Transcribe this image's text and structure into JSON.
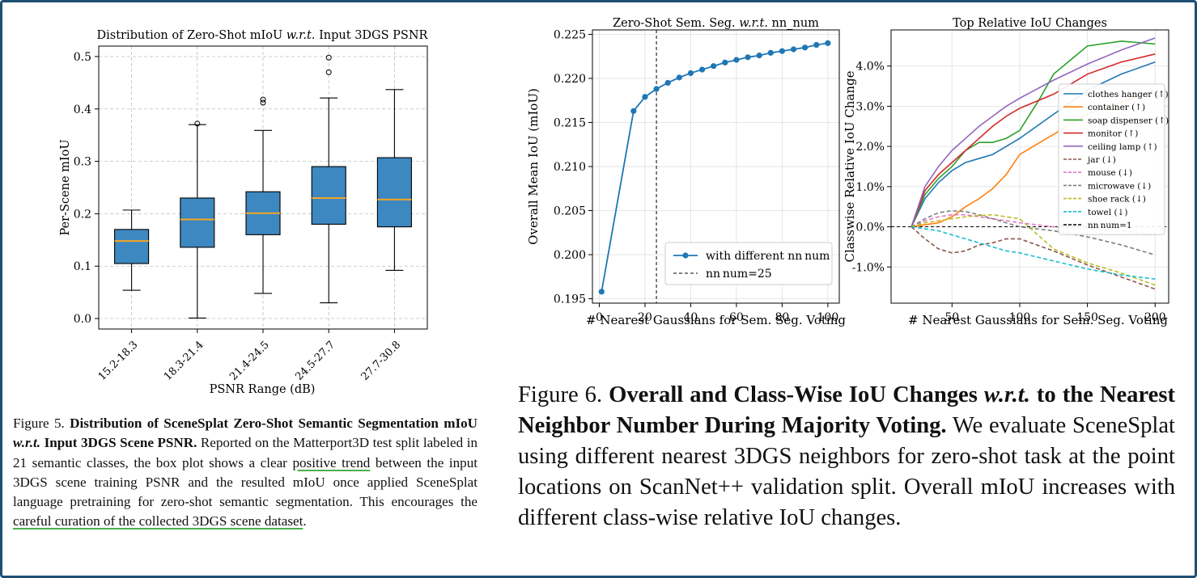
{
  "figure5": {
    "title_pre": "Distribution of Zero-Shot mIoU ",
    "title_em": "w.r.t.",
    "title_post": " Input 3DGS PSNR",
    "ylabel": "Per-Scene mIoU",
    "xlabel": "PSNR Range (dB)",
    "caption": {
      "label": "Figure 5. ",
      "bold1": "Distribution of SceneSplat Zero-Shot Semantic Segmentation mIoU ",
      "bold_em": "w.r.t.",
      "bold2": " Input 3DGS Scene PSNR.",
      "text1": " Reported on the Matterport3D test split labeled in 21 semantic classes, the box plot shows a clear ",
      "hl1": "positive trend",
      "text2": " between the input 3DGS scene training PSNR and the resulted mIoU once applied SceneSplat language pretraining for zero-shot semantic segmentation. This encourages the ",
      "hl2": "careful curation of the collected 3DGS scene dataset",
      "text3": "."
    }
  },
  "figure6": {
    "caption": {
      "label": "Figure 6. ",
      "bold1": "Overall and Class-Wise IoU Changes ",
      "bold_em": "w.r.t.",
      "bold2": " to the Nearest Neighbor Number During Majority Voting.",
      "text": " We evaluate SceneSplat using different nearest 3DGS neighbors for zero-shot task at the point locations on ScanNet++ validation split. Overall mIoU increases with different class-wise relative IoU changes."
    }
  },
  "colors": {
    "box": "#3d88c0",
    "median": "#f5a623",
    "frame": "#1d4f73"
  },
  "chart_data": [
    {
      "type": "box",
      "title": "Distribution of Zero-Shot mIoU w.r.t. Input 3DGS PSNR",
      "xlabel": "PSNR Range (dB)",
      "ylabel": "Per-Scene mIoU",
      "ylim": [
        -0.02,
        0.52
      ],
      "yticks": [
        "0.0",
        "0.1",
        "0.2",
        "0.3",
        "0.4",
        "0.5"
      ],
      "grid": true,
      "categories": [
        "15.2-18.3",
        "18.3-21.4",
        "21.4-24.5",
        "24.5-27.7",
        "27.7-30.8"
      ],
      "boxes": [
        {
          "whisker_low": 0.054,
          "q1": 0.105,
          "median": 0.148,
          "q3": 0.17,
          "whisker_high": 0.207,
          "outliers": []
        },
        {
          "whisker_low": 0.001,
          "q1": 0.136,
          "median": 0.189,
          "q3": 0.23,
          "whisker_high": 0.37,
          "outliers": [
            0.372
          ]
        },
        {
          "whisker_low": 0.048,
          "q1": 0.16,
          "median": 0.201,
          "q3": 0.242,
          "whisker_high": 0.359,
          "outliers": [
            0.412,
            0.418
          ]
        },
        {
          "whisker_low": 0.03,
          "q1": 0.18,
          "median": 0.23,
          "q3": 0.29,
          "whisker_high": 0.421,
          "outliers": [
            0.47,
            0.498
          ]
        },
        {
          "whisker_low": 0.092,
          "q1": 0.175,
          "median": 0.227,
          "q3": 0.307,
          "whisker_high": 0.437,
          "outliers": []
        }
      ]
    },
    {
      "type": "line",
      "title": "Zero-Shot Sem. Seg. w.r.t. nn_num",
      "xlabel": "# Nearest Gaussians for Sem. Seg. Voting",
      "ylabel": "Overall Mean IoU (mIoU)",
      "xlim": [
        -3,
        105
      ],
      "ylim": [
        0.1945,
        0.2255
      ],
      "xticks": [
        "0",
        "20",
        "40",
        "60",
        "80",
        "100"
      ],
      "yticks": [
        "0.195",
        "0.200",
        "0.205",
        "0.210",
        "0.215",
        "0.220",
        "0.225"
      ],
      "grid": true,
      "legend": "bottom-right",
      "series": [
        {
          "name": "with different nn_num",
          "color": "#1f77b4",
          "x": [
            1,
            15,
            20,
            25,
            30,
            35,
            40,
            45,
            50,
            55,
            60,
            65,
            70,
            75,
            80,
            85,
            90,
            95,
            100
          ],
          "y": [
            0.1958,
            0.2163,
            0.2179,
            0.2188,
            0.2195,
            0.2201,
            0.2206,
            0.221,
            0.2214,
            0.2218,
            0.2221,
            0.2224,
            0.2226,
            0.2229,
            0.2231,
            0.2233,
            0.2235,
            0.2238,
            0.224
          ]
        }
      ],
      "vline": {
        "x": 25,
        "name": "nn_num=25"
      }
    },
    {
      "type": "line",
      "title": "Top Relative IoU Changes",
      "xlabel": "# Nearest Gaussians for Sem. Seg. Voting",
      "ylabel": "Classwise Relative IoU Change",
      "xlim": [
        5,
        210
      ],
      "ylim": [
        -1.9,
        4.9
      ],
      "xticks": [
        "50",
        "100",
        "150",
        "200"
      ],
      "yticks": [
        "-1.0%",
        "0.0%",
        "1.0%",
        "2.0%",
        "3.0%",
        "4.0%"
      ],
      "grid": true,
      "legend": "right",
      "hline": {
        "y": 0,
        "name": "nn_num=1"
      },
      "series": [
        {
          "name": "clothes hanger (↑)",
          "color": "#1f77b4",
          "dash": false,
          "x": [
            20,
            30,
            40,
            50,
            60,
            70,
            80,
            90,
            100,
            125,
            150,
            175,
            200
          ],
          "y": [
            0,
            0.7,
            1.1,
            1.4,
            1.6,
            1.7,
            1.8,
            2.0,
            2.2,
            2.8,
            3.4,
            3.8,
            4.1
          ]
        },
        {
          "name": "container (↑)",
          "color": "#ff7f0e",
          "dash": false,
          "x": [
            20,
            30,
            40,
            50,
            60,
            70,
            80,
            90,
            100,
            125,
            150,
            175,
            200
          ],
          "y": [
            0,
            0.05,
            0.1,
            0.25,
            0.5,
            0.7,
            0.95,
            1.3,
            1.8,
            2.3,
            2.8,
            3.1,
            3.4
          ]
        },
        {
          "name": "soap dispenser (↑)",
          "color": "#2ca02c",
          "dash": false,
          "x": [
            20,
            30,
            40,
            50,
            60,
            70,
            80,
            90,
            100,
            115,
            125,
            150,
            175,
            200
          ],
          "y": [
            0,
            0.8,
            1.2,
            1.5,
            1.9,
            2.1,
            2.1,
            2.2,
            2.4,
            3.2,
            3.8,
            4.5,
            4.62,
            4.55
          ]
        },
        {
          "name": "monitor (↑)",
          "color": "#d62728",
          "dash": false,
          "x": [
            20,
            30,
            40,
            50,
            60,
            70,
            80,
            90,
            100,
            125,
            150,
            175,
            200
          ],
          "y": [
            0,
            0.9,
            1.3,
            1.6,
            1.9,
            2.2,
            2.5,
            2.75,
            2.95,
            3.3,
            3.8,
            4.1,
            4.3
          ]
        },
        {
          "name": "ceiling lamp (↑)",
          "color": "#9467bd",
          "dash": false,
          "x": [
            20,
            30,
            40,
            50,
            60,
            70,
            80,
            90,
            100,
            125,
            150,
            175,
            200
          ],
          "y": [
            0,
            1.0,
            1.5,
            1.9,
            2.2,
            2.5,
            2.75,
            3.0,
            3.2,
            3.65,
            4.05,
            4.4,
            4.7
          ]
        },
        {
          "name": "jar (↓)",
          "color": "#8c564b",
          "dash": true,
          "x": [
            20,
            30,
            40,
            50,
            60,
            70,
            80,
            90,
            100,
            125,
            150,
            175,
            200
          ],
          "y": [
            0,
            -0.3,
            -0.55,
            -0.65,
            -0.6,
            -0.45,
            -0.4,
            -0.3,
            -0.3,
            -0.6,
            -0.95,
            -1.25,
            -1.55
          ]
        },
        {
          "name": "mouse (↓)",
          "color": "#e377c2",
          "dash": true,
          "x": [
            20,
            30,
            40,
            50,
            60,
            70,
            80,
            90,
            100,
            125,
            150,
            175,
            200
          ],
          "y": [
            0,
            0.15,
            0.25,
            0.3,
            0.3,
            0.25,
            0.2,
            0.15,
            0.1,
            0.0,
            -0.05,
            -0.1,
            -0.2
          ]
        },
        {
          "name": "microwave (↓)",
          "color": "#7f7f7f",
          "dash": true,
          "x": [
            20,
            30,
            40,
            50,
            60,
            70,
            80,
            90,
            100,
            125,
            150,
            175,
            200
          ],
          "y": [
            0,
            0.2,
            0.35,
            0.4,
            0.38,
            0.3,
            0.2,
            0.1,
            0.0,
            -0.1,
            -0.25,
            -0.45,
            -0.7
          ]
        },
        {
          "name": "shoe rack (↓)",
          "color": "#bcbd22",
          "dash": true,
          "x": [
            20,
            30,
            40,
            50,
            60,
            70,
            80,
            90,
            100,
            110,
            125,
            150,
            175,
            200
          ],
          "y": [
            0,
            0.1,
            0.15,
            0.2,
            0.25,
            0.28,
            0.3,
            0.25,
            0.2,
            -0.1,
            -0.55,
            -0.9,
            -1.15,
            -1.45
          ]
        },
        {
          "name": "towel (↓)",
          "color": "#17becf",
          "dash": true,
          "x": [
            20,
            30,
            40,
            50,
            60,
            70,
            80,
            90,
            100,
            125,
            150,
            175,
            200
          ],
          "y": [
            0,
            -0.05,
            -0.1,
            -0.2,
            -0.3,
            -0.4,
            -0.5,
            -0.6,
            -0.65,
            -0.85,
            -1.05,
            -1.2,
            -1.3
          ]
        }
      ]
    }
  ]
}
